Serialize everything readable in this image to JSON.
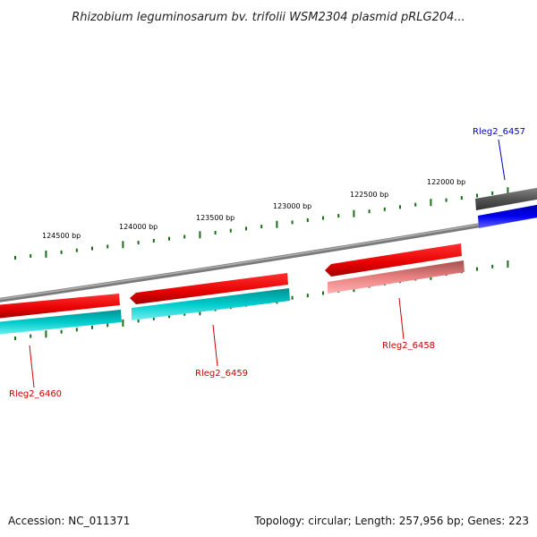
{
  "title": "Rhizobium leguminosarum bv. trifolii WSM2304 plasmid pRLG204...",
  "footer": {
    "accession": "Accession: NC_011371",
    "summary": "Topology: circular; Length: 257,956 bp; Genes: 223"
  },
  "ticks": [
    {
      "label": "124500 bp",
      "position": 124500
    },
    {
      "label": "124000 bp",
      "position": 124000
    },
    {
      "label": "123500 bp",
      "position": 123500
    },
    {
      "label": "123000 bp",
      "position": 123000
    },
    {
      "label": "122500 bp",
      "position": 122500
    },
    {
      "label": "122000 bp",
      "position": 122000
    }
  ],
  "genes": [
    {
      "label": "Rleg2_6460",
      "strand": "reverse",
      "label_color": "#cc0000",
      "gene_color": "#e60000",
      "cds_color": "#00b3b3"
    },
    {
      "label": "Rleg2_6459",
      "strand": "reverse",
      "label_color": "#cc0000",
      "gene_color": "#e60000",
      "cds_color": "#00b3b3"
    },
    {
      "label": "Rleg2_6458",
      "strand": "reverse",
      "label_color": "#cc0000",
      "gene_color": "#e60000",
      "cds_color": "#e88080"
    },
    {
      "label": "Rleg2_6457",
      "strand": "forward",
      "label_color": "#0000cc",
      "gene_color": "#555555",
      "cds_color": "#0000ee"
    }
  ],
  "colors": {
    "backbone": "#888888",
    "tick": "#1a6e1a"
  }
}
